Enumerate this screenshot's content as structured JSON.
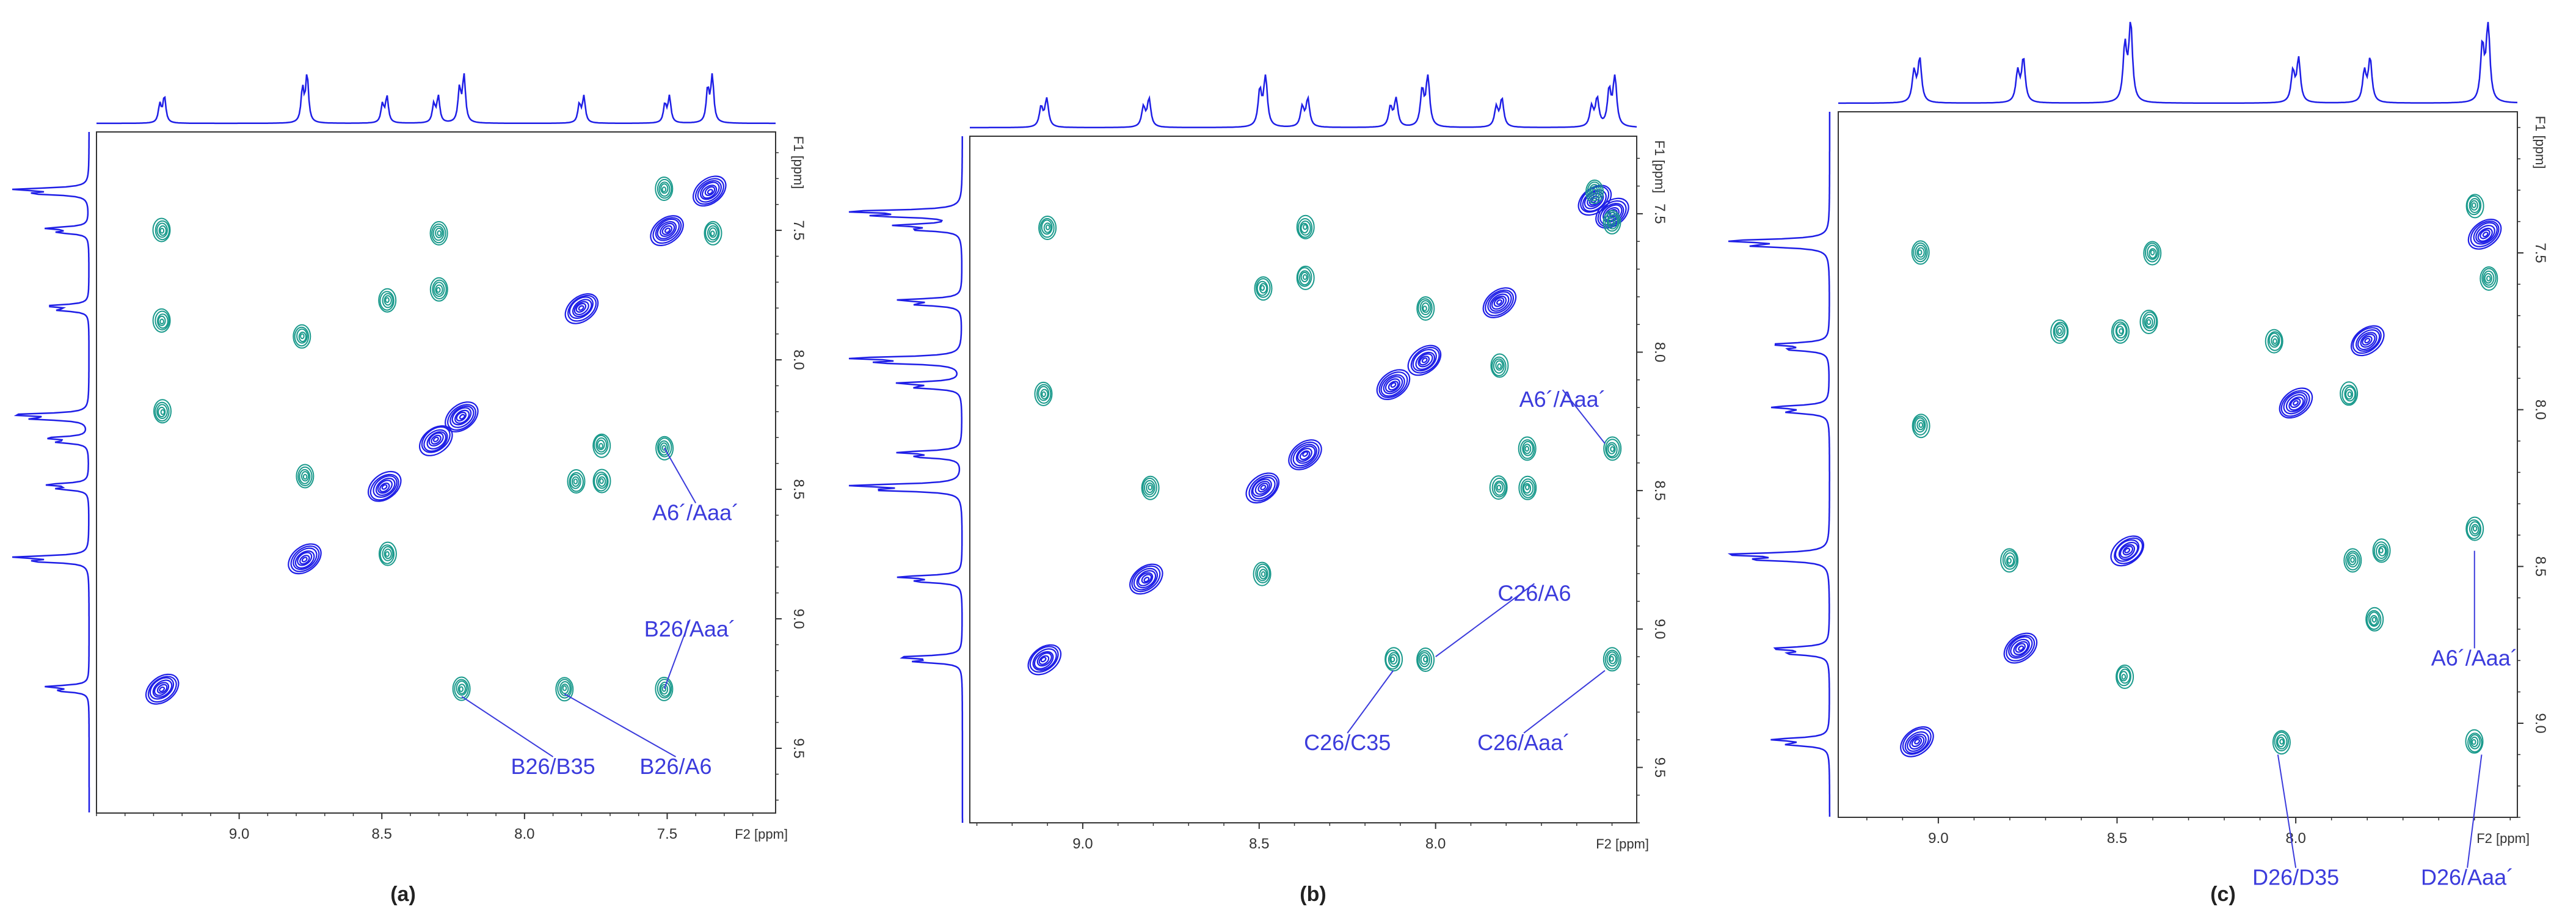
{
  "colors": {
    "diagonal": "#1e1ee6",
    "cross": "#1a9a8c",
    "trace": "#1e1ee6",
    "annotation": "#3b3bdc",
    "axis": "#333333"
  },
  "chart_data": [
    {
      "type": "scatter",
      "panel_label": "(a)",
      "xlabel": "F2 [ppm]",
      "ylabel": "F1 [ppm]",
      "xlim": [
        9.5,
        7.12
      ],
      "ylim": [
        7.12,
        9.75
      ],
      "x_ticks": [
        "9.0",
        "8.5",
        "8.0",
        "7.5"
      ],
      "y_ticks": [
        "7.5",
        "8.0",
        "8.5",
        "9.0",
        "9.5"
      ],
      "diagonal_peaks": [
        {
          "x": 7.35,
          "y": 7.35
        },
        {
          "x": 7.5,
          "y": 7.5
        },
        {
          "x": 7.8,
          "y": 7.8
        },
        {
          "x": 8.22,
          "y": 8.22
        },
        {
          "x": 8.31,
          "y": 8.31
        },
        {
          "x": 8.49,
          "y": 8.49
        },
        {
          "x": 8.77,
          "y": 8.77
        },
        {
          "x": 9.27,
          "y": 9.27
        }
      ],
      "cross_peaks": [
        {
          "x": 7.51,
          "y": 7.34
        },
        {
          "x": 7.34,
          "y": 7.51
        },
        {
          "x": 9.27,
          "y": 7.5
        },
        {
          "x": 9.27,
          "y": 7.85
        },
        {
          "x": 9.27,
          "y": 8.2
        },
        {
          "x": 8.3,
          "y": 7.51
        },
        {
          "x": 8.48,
          "y": 7.77
        },
        {
          "x": 8.3,
          "y": 7.73
        },
        {
          "x": 8.78,
          "y": 7.91
        },
        {
          "x": 8.77,
          "y": 8.45
        },
        {
          "x": 8.48,
          "y": 8.75
        },
        {
          "x": 7.73,
          "y": 8.33
        },
        {
          "x": 7.73,
          "y": 8.47
        },
        {
          "x": 7.82,
          "y": 8.47
        },
        {
          "x": 7.51,
          "y": 8.34
        },
        {
          "x": 8.22,
          "y": 9.27
        },
        {
          "x": 7.86,
          "y": 9.27
        },
        {
          "x": 7.51,
          "y": 9.27
        }
      ],
      "annotations": [
        {
          "text": "A6´/Aaa´",
          "x": 7.4,
          "y": 8.6,
          "px": 7.51,
          "py": 8.34
        },
        {
          "text": "B26/Aaa´",
          "x": 7.42,
          "y": 9.05,
          "px": 7.51,
          "py": 9.27
        },
        {
          "text": "B26/B35",
          "x": 7.9,
          "y": 9.58,
          "px": 8.22,
          "py": 9.3
        },
        {
          "text": "B26/A6",
          "x": 7.47,
          "y": 9.58,
          "px": 7.86,
          "py": 9.29
        }
      ]
    },
    {
      "type": "scatter",
      "panel_label": "(b)",
      "xlabel": "F2 [ppm]",
      "ylabel": "F1 [ppm]",
      "xlim": [
        9.32,
        7.43
      ],
      "ylim": [
        7.22,
        9.7
      ],
      "x_ticks": [
        "9.0",
        "8.5",
        "8.0"
      ],
      "y_ticks": [
        "7.5",
        "8.0",
        "8.5",
        "9.0",
        "9.5"
      ],
      "diagonal_peaks": [
        {
          "x": 7.5,
          "y": 7.5
        },
        {
          "x": 7.55,
          "y": 7.45
        },
        {
          "x": 7.82,
          "y": 7.82
        },
        {
          "x": 8.03,
          "y": 8.03
        },
        {
          "x": 8.12,
          "y": 8.12
        },
        {
          "x": 8.37,
          "y": 8.37
        },
        {
          "x": 8.49,
          "y": 8.49
        },
        {
          "x": 8.82,
          "y": 8.82
        },
        {
          "x": 9.11,
          "y": 9.11
        }
      ],
      "cross_peaks": [
        {
          "x": 7.55,
          "y": 7.42
        },
        {
          "x": 7.5,
          "y": 7.53
        },
        {
          "x": 9.1,
          "y": 7.55
        },
        {
          "x": 9.11,
          "y": 8.15
        },
        {
          "x": 8.37,
          "y": 7.55
        },
        {
          "x": 8.37,
          "y": 7.73
        },
        {
          "x": 8.49,
          "y": 7.77
        },
        {
          "x": 8.03,
          "y": 7.84
        },
        {
          "x": 7.82,
          "y": 8.05
        },
        {
          "x": 8.81,
          "y": 8.49
        },
        {
          "x": 7.74,
          "y": 8.35
        },
        {
          "x": 7.82,
          "y": 8.49
        },
        {
          "x": 7.74,
          "y": 8.49
        },
        {
          "x": 7.5,
          "y": 8.35
        },
        {
          "x": 8.49,
          "y": 8.8
        },
        {
          "x": 8.12,
          "y": 9.11
        },
        {
          "x": 8.03,
          "y": 9.11
        },
        {
          "x": 7.5,
          "y": 9.11
        }
      ],
      "annotations": [
        {
          "text": "A6´/Aaa´",
          "x": 7.64,
          "y": 8.18,
          "px": 7.52,
          "py": 8.33
        },
        {
          "text": "C26/A6",
          "x": 7.72,
          "y": 8.88,
          "px": 8.0,
          "py": 9.1
        },
        {
          "text": "C26/C35",
          "x": 8.25,
          "y": 9.42,
          "px": 8.12,
          "py": 9.15
        },
        {
          "text": "C26/Aaa´",
          "x": 7.75,
          "y": 9.42,
          "px": 7.52,
          "py": 9.15
        }
      ]
    },
    {
      "type": "scatter",
      "panel_label": "(c)",
      "xlabel": "F2 [ppm]",
      "ylabel": "F1 [ppm]",
      "xlim": [
        9.28,
        7.38
      ],
      "ylim": [
        7.05,
        9.3
      ],
      "x_ticks": [
        "9.0",
        "8.5",
        "8.0"
      ],
      "y_ticks": [
        "7.5",
        "8.0",
        "8.5",
        "9.0"
      ],
      "diagonal_peaks": [
        {
          "x": 7.47,
          "y": 7.44
        },
        {
          "x": 7.8,
          "y": 7.78
        },
        {
          "x": 8.0,
          "y": 7.98
        },
        {
          "x": 8.47,
          "y": 8.45
        },
        {
          "x": 8.77,
          "y": 8.76
        },
        {
          "x": 9.06,
          "y": 9.06
        }
      ],
      "cross_peaks": [
        {
          "x": 7.5,
          "y": 7.35
        },
        {
          "x": 7.46,
          "y": 7.58
        },
        {
          "x": 9.05,
          "y": 7.5
        },
        {
          "x": 9.05,
          "y": 8.05
        },
        {
          "x": 8.66,
          "y": 7.75
        },
        {
          "x": 8.49,
          "y": 7.75
        },
        {
          "x": 8.41,
          "y": 7.72
        },
        {
          "x": 8.4,
          "y": 7.5
        },
        {
          "x": 8.06,
          "y": 7.78
        },
        {
          "x": 7.85,
          "y": 7.95
        },
        {
          "x": 8.8,
          "y": 8.48
        },
        {
          "x": 7.84,
          "y": 8.48
        },
        {
          "x": 7.76,
          "y": 8.45
        },
        {
          "x": 7.78,
          "y": 8.67
        },
        {
          "x": 7.5,
          "y": 8.38
        },
        {
          "x": 8.48,
          "y": 8.85
        },
        {
          "x": 8.04,
          "y": 9.06
        },
        {
          "x": 7.5,
          "y": 9.06
        }
      ],
      "annotations": [
        {
          "text": "A6´/Aaa´",
          "x": 7.5,
          "y": 8.8,
          "px": 7.5,
          "py": 8.45
        },
        {
          "text": "D26/D35",
          "x": 8.0,
          "y": 9.5,
          "px": 8.05,
          "py": 9.1
        },
        {
          "text": "D26/Aaa´",
          "x": 7.52,
          "y": 9.5,
          "px": 7.48,
          "py": 9.1
        }
      ]
    }
  ]
}
